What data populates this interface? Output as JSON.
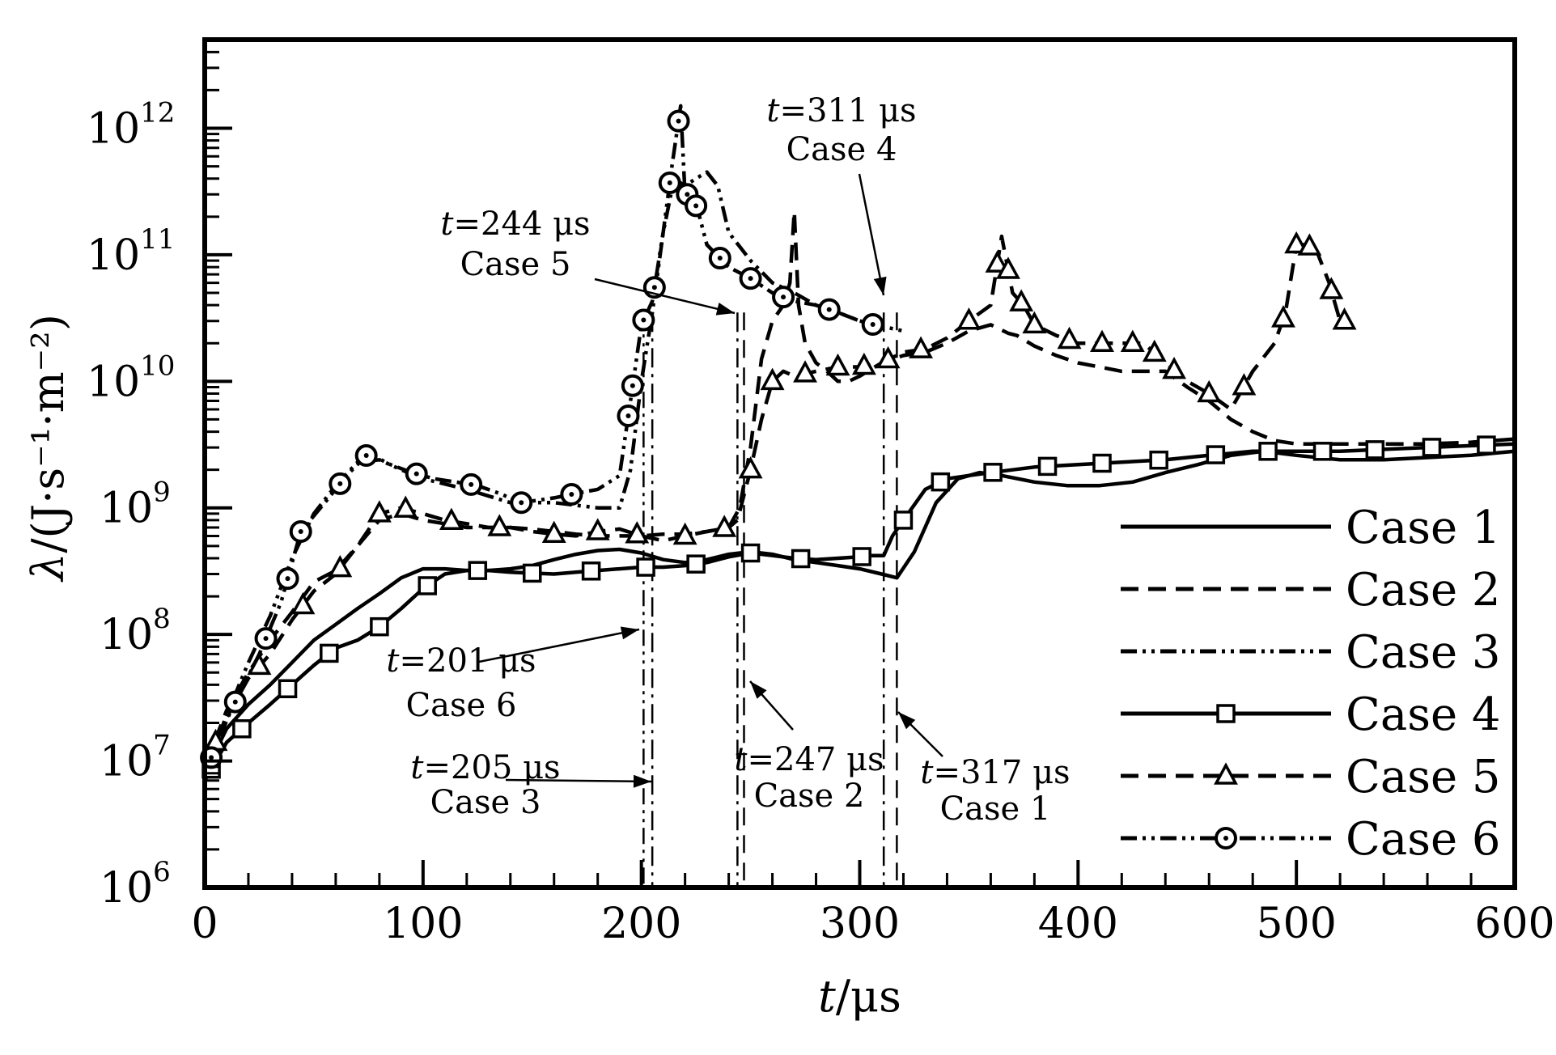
{
  "chart_data": {
    "type": "line",
    "title": "",
    "xlabel_var": "t",
    "xlabel_unit": "/μs",
    "ylabel_var": "λ",
    "ylabel_unit": "/(J·s⁻¹·m⁻²)",
    "xlim": [
      0,
      600
    ],
    "ylim_log10": [
      6,
      12.7
    ],
    "yscale": "log",
    "grid": false,
    "legend_position": "bottom-right",
    "x_ticks": [
      {
        "value": 0,
        "label": "0"
      },
      {
        "value": 100,
        "label": "100"
      },
      {
        "value": 200,
        "label": "200"
      },
      {
        "value": 300,
        "label": "300"
      },
      {
        "value": 400,
        "label": "400"
      },
      {
        "value": 500,
        "label": "500"
      },
      {
        "value": 600,
        "label": "600"
      }
    ],
    "y_ticks": [
      {
        "exp": 6,
        "base": "10",
        "sup": "6"
      },
      {
        "exp": 7,
        "base": "10",
        "sup": "7"
      },
      {
        "exp": 8,
        "base": "10",
        "sup": "8"
      },
      {
        "exp": 9,
        "base": "10",
        "sup": "9"
      },
      {
        "exp": 10,
        "base": "10",
        "sup": "10"
      },
      {
        "exp": 11,
        "base": "10",
        "sup": "11"
      },
      {
        "exp": 12,
        "base": "10",
        "sup": "12"
      }
    ],
    "series": [
      {
        "name": "Case 1",
        "line": "solid",
        "marker": "none",
        "x": [
          0,
          10,
          20,
          30,
          40,
          50,
          60,
          70,
          80,
          90,
          100,
          110,
          120,
          130,
          140,
          150,
          160,
          170,
          180,
          190,
          200,
          210,
          220,
          230,
          240,
          250,
          260,
          270,
          280,
          290,
          300,
          310,
          317,
          325,
          335,
          345,
          355,
          365,
          380,
          395,
          410,
          425,
          440,
          455,
          470,
          485,
          500,
          520,
          540,
          560,
          580,
          600
        ],
        "y": [
          8000000.0,
          18000000.0,
          28000000.0,
          40000000.0,
          60000000.0,
          90000000.0,
          120000000.0,
          160000000.0,
          210000000.0,
          280000000.0,
          330000000.0,
          330000000.0,
          320000000.0,
          320000000.0,
          330000000.0,
          350000000.0,
          390000000.0,
          430000000.0,
          460000000.0,
          470000000.0,
          440000000.0,
          390000000.0,
          370000000.0,
          390000000.0,
          430000000.0,
          450000000.0,
          430000000.0,
          390000000.0,
          370000000.0,
          350000000.0,
          330000000.0,
          300000000.0,
          280000000.0,
          450000000.0,
          1100000000.0,
          1700000000.0,
          1900000000.0,
          1800000000.0,
          1600000000.0,
          1500000000.0,
          1500000000.0,
          1600000000.0,
          1900000000.0,
          2200000000.0,
          2600000000.0,
          2800000000.0,
          2600000000.0,
          2400000000.0,
          2400000000.0,
          2500000000.0,
          2600000000.0,
          2800000000.0
        ]
      },
      {
        "name": "Case 2",
        "line": "dashed",
        "marker": "none",
        "x": [
          0,
          10,
          20,
          30,
          40,
          50,
          60,
          70,
          80,
          90,
          100,
          110,
          120,
          130,
          140,
          150,
          160,
          170,
          180,
          190,
          200,
          210,
          220,
          230,
          240,
          245,
          250,
          255,
          260,
          265,
          268,
          270,
          272,
          275,
          280,
          285,
          290,
          295,
          300,
          310,
          320,
          330,
          340,
          350,
          360,
          368,
          372,
          380,
          390,
          400,
          420,
          440,
          450,
          460,
          470,
          480,
          490,
          500,
          520,
          540,
          560,
          580,
          600
        ],
        "y": [
          9000000.0,
          25000000.0,
          50000000.0,
          90000000.0,
          150000000.0,
          260000000.0,
          320000000.0,
          500000000.0,
          800000000.0,
          900000000.0,
          800000000.0,
          750000000.0,
          700000000.0,
          700000000.0,
          700000000.0,
          680000000.0,
          650000000.0,
          620000000.0,
          600000000.0,
          600000000.0,
          600000000.0,
          620000000.0,
          620000000.0,
          650000000.0,
          700000000.0,
          1000000000.0,
          3000000000.0,
          15000000000.0,
          30000000000.0,
          40000000000.0,
          60000000000.0,
          220000000000.0,
          40000000000.0,
          20000000000.0,
          14000000000.0,
          12000000000.0,
          10000000000.0,
          10000000000.0,
          11000000000.0,
          14000000000.0,
          16000000000.0,
          17000000000.0,
          20000000000.0,
          25000000000.0,
          28000000000.0,
          24000000000.0,
          23000000000.0,
          19000000000.0,
          16000000000.0,
          14000000000.0,
          12000000000.0,
          12000000000.0,
          9000000000.0,
          7000000000.0,
          5000000000.0,
          4000000000.0,
          3400000000.0,
          3200000000.0,
          3200000000.0,
          3200000000.0,
          3200000000.0,
          3300000000.0,
          3500000000.0
        ]
      },
      {
        "name": "Case 3",
        "line": "dashdotdot",
        "marker": "none",
        "x": [
          0,
          10,
          20,
          30,
          40,
          50,
          60,
          70,
          80,
          90,
          100,
          120,
          140,
          160,
          180,
          190,
          195,
          200,
          205,
          210,
          215,
          220,
          225,
          230,
          235,
          240,
          250,
          260,
          270,
          280,
          290,
          300,
          311,
          320
        ],
        "y": [
          8000000.0,
          23000000.0,
          60000000.0,
          140000000.0,
          400000000.0,
          900000000.0,
          1500000000.0,
          2300000000.0,
          2400000000.0,
          2000000000.0,
          1700000000.0,
          1400000000.0,
          1100000000.0,
          1100000000.0,
          1000000000.0,
          1000000000.0,
          2000000000.0,
          10000000000.0,
          35000000000.0,
          150000000000.0,
          400000000000.0,
          350000000000.0,
          400000000000.0,
          450000000000.0,
          350000000000.0,
          150000000000.0,
          90000000000.0,
          60000000000.0,
          50000000000.0,
          40000000000.0,
          35000000000.0,
          30000000000.0,
          27000000000.0,
          25000000000.0
        ]
      },
      {
        "name": "Case 4",
        "line": "solid",
        "marker": "square",
        "x": [
          0,
          10,
          20,
          30,
          40,
          50,
          60,
          70,
          80,
          90,
          100,
          110,
          120,
          130,
          140,
          150,
          160,
          170,
          180,
          190,
          200,
          210,
          220,
          230,
          240,
          250,
          260,
          270,
          280,
          290,
          300,
          305,
          311,
          315,
          320,
          330,
          340,
          350,
          360,
          370,
          380,
          400,
          420,
          440,
          460,
          480,
          500,
          520,
          540,
          560,
          580,
          600
        ],
        "y": [
          7000000.0,
          14000000.0,
          20000000.0,
          28000000.0,
          40000000.0,
          57000000.0,
          78000000.0,
          90000000.0,
          115000000.0,
          160000000.0,
          230000000.0,
          300000000.0,
          320000000.0,
          320000000.0,
          310000000.0,
          305000000.0,
          300000000.0,
          310000000.0,
          320000000.0,
          330000000.0,
          340000000.0,
          340000000.0,
          350000000.0,
          370000000.0,
          410000000.0,
          440000000.0,
          420000000.0,
          400000000.0,
          390000000.0,
          400000000.0,
          410000000.0,
          420000000.0,
          420000000.0,
          600000000.0,
          800000000.0,
          1400000000.0,
          1700000000.0,
          1800000000.0,
          1900000000.0,
          2000000000.0,
          2100000000.0,
          2200000000.0,
          2300000000.0,
          2400000000.0,
          2600000000.0,
          2800000000.0,
          2800000000.0,
          2800000000.0,
          2900000000.0,
          3000000000.0,
          3100000000.0,
          3200000000.0
        ],
        "markers_x": [
          3,
          17,
          38,
          57,
          80,
          102,
          125,
          150,
          177,
          202,
          225,
          250,
          273,
          301,
          320,
          337,
          361,
          386,
          411,
          437,
          463,
          487,
          512,
          536,
          562,
          587
        ]
      },
      {
        "name": "Case 5",
        "line": "dashed",
        "marker": "triangle",
        "x": [
          0,
          10,
          20,
          30,
          40,
          50,
          60,
          70,
          80,
          90,
          100,
          110,
          120,
          130,
          140,
          150,
          160,
          170,
          180,
          190,
          200,
          210,
          220,
          230,
          240,
          244,
          250,
          255,
          260,
          265,
          270,
          280,
          290,
          300,
          310,
          320,
          330,
          340,
          350,
          360,
          365,
          370,
          375,
          380,
          390,
          400,
          410,
          420,
          430,
          440,
          450,
          460,
          470,
          480,
          490,
          495,
          500,
          505,
          510,
          515,
          520
        ],
        "y": [
          9000000.0,
          22000000.0,
          45000000.0,
          70000000.0,
          130000000.0,
          220000000.0,
          300000000.0,
          500000000.0,
          900000000.0,
          1000000000.0,
          900000000.0,
          800000000.0,
          750000000.0,
          700000000.0,
          700000000.0,
          650000000.0,
          620000000.0,
          600000000.0,
          650000000.0,
          680000000.0,
          600000000.0,
          550000000.0,
          600000000.0,
          650000000.0,
          700000000.0,
          800000000.0,
          2000000000.0,
          5000000000.0,
          10000000000.0,
          12000000000.0,
          11000000000.0,
          12000000000.0,
          13000000000.0,
          13000000000.0,
          14000000000.0,
          17000000000.0,
          18000000000.0,
          22000000000.0,
          30000000000.0,
          40000000000.0,
          140000000000.0,
          50000000000.0,
          40000000000.0,
          28000000000.0,
          23000000000.0,
          20000000000.0,
          20000000000.0,
          20000000000.0,
          20000000000.0,
          14000000000.0,
          10000000000.0,
          8000000000.0,
          6000000000.0,
          12000000000.0,
          20000000000.0,
          35000000000.0,
          120000000000.0,
          120000000000.0,
          100000000000.0,
          60000000000.0,
          30000000000.0
        ],
        "markers_x": [
          5,
          25,
          45,
          62,
          80,
          92,
          113,
          135,
          160,
          180,
          198,
          220,
          238,
          250,
          260,
          275,
          290,
          302,
          313,
          328,
          350,
          363,
          368,
          374,
          380,
          396,
          411,
          425,
          435,
          444,
          460,
          476,
          494,
          500,
          506,
          516,
          522
        ]
      },
      {
        "name": "Case 6",
        "line": "dashdotdot",
        "marker": "circle",
        "x": [
          0,
          12,
          25,
          35,
          44,
          55,
          65,
          75,
          85,
          95,
          105,
          115,
          125,
          135,
          145,
          160,
          170,
          180,
          190,
          195,
          200,
          205,
          210,
          214,
          218,
          220,
          223,
          226,
          230,
          240,
          250,
          260,
          270,
          280,
          290,
          300,
          310
        ],
        "y": [
          8000000.0,
          25000000.0,
          70000000.0,
          180000000.0,
          650000000.0,
          1100000000.0,
          1800000000.0,
          2700000000.0,
          2200000000.0,
          1900000000.0,
          1700000000.0,
          1600000000.0,
          1500000000.0,
          1300000000.0,
          1100000000.0,
          1200000000.0,
          1300000000.0,
          1400000000.0,
          1800000000.0,
          7000000000.0,
          28000000000.0,
          43000000000.0,
          150000000000.0,
          500000000000.0,
          1500000000000.0,
          300000000000.0,
          300000000000.0,
          220000000000.0,
          120000000000.0,
          80000000000.0,
          65000000000.0,
          50000000000.0,
          43000000000.0,
          40000000000.0,
          35000000000.0,
          30000000000.0,
          27000000000.0
        ],
        "markers_x": [
          3,
          14,
          28,
          38,
          44,
          62,
          74,
          97,
          122,
          145,
          168,
          194,
          196,
          201,
          206,
          213,
          217,
          221,
          225,
          236,
          250,
          265,
          286,
          306
        ]
      }
    ],
    "annotations": [
      {
        "id": "case6",
        "var": "t",
        "text": "=201 μs",
        "case": "Case 6"
      },
      {
        "id": "case3",
        "var": "t",
        "text": "=205 μs",
        "case": "Case 3"
      },
      {
        "id": "case5",
        "var": "t",
        "text": "=244 μs",
        "case": "Case 5"
      },
      {
        "id": "case2",
        "var": "t",
        "text": "=247 μs",
        "case": "Case 2"
      },
      {
        "id": "case4",
        "var": "t",
        "text": "=311 μs",
        "case": "Case 4"
      },
      {
        "id": "case1",
        "var": "t",
        "text": "=317 μs",
        "case": "Case 1"
      }
    ],
    "vertical_markers": [
      {
        "x": 201,
        "style": "dashdotdot"
      },
      {
        "x": 205,
        "style": "dashdot"
      },
      {
        "x": 244,
        "style": "dashdot"
      },
      {
        "x": 247,
        "style": "dashed"
      },
      {
        "x": 311,
        "style": "dashdot"
      },
      {
        "x": 317,
        "style": "dashed"
      }
    ]
  }
}
